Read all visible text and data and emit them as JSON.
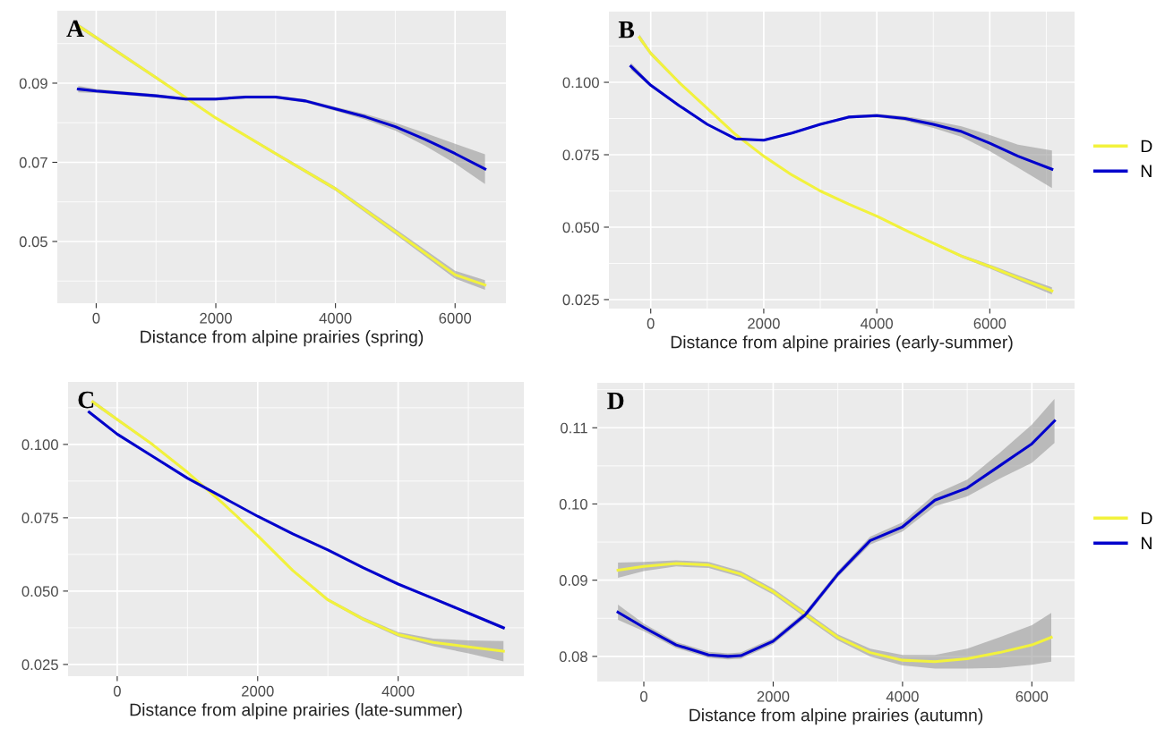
{
  "chart_data": [
    {
      "type": "line",
      "xlabel": "Distance from alpine prairies (spring)",
      "annotations": [
        "A"
      ],
      "xlim": [
        -650,
        6850
      ],
      "ylim": [
        0.0344,
        0.1083
      ],
      "xticks": [
        0,
        2000,
        4000,
        6000
      ],
      "yticks": [
        0.05,
        0.07,
        0.09
      ],
      "grid": true,
      "legend": false,
      "series": [
        {
          "color": "#f2f23c",
          "x": [
            -300,
            0,
            1000,
            2000,
            3000,
            4000,
            5000,
            6000,
            6500
          ],
          "values": [
            0.1045,
            0.1015,
            0.0914,
            0.0812,
            0.0722,
            0.0633,
            0.0525,
            0.0416,
            0.039
          ],
          "lower": [
            0.104,
            0.101,
            0.091,
            0.081,
            0.0718,
            0.0628,
            0.0518,
            0.0406,
            0.0378
          ],
          "upper": [
            0.105,
            0.102,
            0.0918,
            0.0815,
            0.0726,
            0.0638,
            0.0532,
            0.0426,
            0.0402
          ]
        },
        {
          "color": "#0000cc",
          "x": [
            -300,
            0,
            1000,
            1500,
            2000,
            2500,
            3000,
            3500,
            4000,
            4500,
            5000,
            5500,
            6000,
            6500
          ],
          "values": [
            0.0885,
            0.088,
            0.0868,
            0.086,
            0.086,
            0.0865,
            0.0865,
            0.0855,
            0.0835,
            0.0815,
            0.079,
            0.0758,
            0.0722,
            0.0683
          ],
          "lower": [
            0.0877,
            0.0875,
            0.0864,
            0.0856,
            0.0856,
            0.0861,
            0.0861,
            0.0851,
            0.083,
            0.0808,
            0.078,
            0.0742,
            0.0697,
            0.0645
          ],
          "upper": [
            0.0893,
            0.0885,
            0.0872,
            0.0864,
            0.0864,
            0.0869,
            0.0869,
            0.0859,
            0.084,
            0.0822,
            0.08,
            0.0774,
            0.0747,
            0.072
          ]
        }
      ]
    },
    {
      "type": "line",
      "xlabel": "Distance from alpine prairies (early-summer)",
      "annotations": [
        "B"
      ],
      "xlim": [
        -740,
        7500
      ],
      "ylim": [
        0.0219,
        0.1244
      ],
      "xticks": [
        0,
        2000,
        4000,
        6000
      ],
      "yticks": [
        {
          "value": 0.025,
          "label": "0.025"
        },
        {
          "value": 0.05,
          "label": "0.050"
        },
        {
          "value": 0.075,
          "label": "0.075"
        },
        {
          "value": 0.1,
          "label": "0.100"
        }
      ],
      "grid": true,
      "legend": "right",
      "series": [
        {
          "name": "D",
          "color": "#f2f23c",
          "x": [
            -200,
            0,
            500,
            1000,
            1500,
            2000,
            2500,
            3000,
            3500,
            4000,
            4500,
            5000,
            5500,
            6000,
            6500,
            7100
          ],
          "values": [
            0.1155,
            0.11,
            0.1,
            0.091,
            0.082,
            0.0745,
            0.068,
            0.0625,
            0.058,
            0.0538,
            0.049,
            0.0445,
            0.04,
            0.0364,
            0.0325,
            0.028
          ],
          "lower": [
            0.1145,
            0.1093,
            0.0995,
            0.0906,
            0.0817,
            0.0742,
            0.0677,
            0.0622,
            0.0577,
            0.0535,
            0.0487,
            0.0441,
            0.0395,
            0.0357,
            0.0316,
            0.0268
          ],
          "upper": [
            0.1165,
            0.1107,
            0.1005,
            0.0914,
            0.0823,
            0.0748,
            0.0683,
            0.0628,
            0.0583,
            0.0541,
            0.0493,
            0.0449,
            0.0405,
            0.0371,
            0.0334,
            0.0292
          ]
        },
        {
          "name": "N",
          "color": "#0000cc",
          "x": [
            -350,
            0,
            500,
            1000,
            1500,
            2000,
            2500,
            3000,
            3500,
            4000,
            4500,
            5000,
            5500,
            6000,
            6500,
            7100
          ],
          "values": [
            0.1055,
            0.099,
            0.092,
            0.0855,
            0.0805,
            0.08,
            0.0825,
            0.0855,
            0.088,
            0.0885,
            0.0875,
            0.0855,
            0.083,
            0.079,
            0.0745,
            0.07
          ],
          "lower": [
            0.1043,
            0.0984,
            0.0915,
            0.0851,
            0.0801,
            0.0796,
            0.0821,
            0.0851,
            0.0875,
            0.0879,
            0.0867,
            0.0843,
            0.0812,
            0.0762,
            0.0705,
            0.0635
          ],
          "upper": [
            0.1067,
            0.0996,
            0.0925,
            0.0859,
            0.0809,
            0.0804,
            0.0829,
            0.0859,
            0.0885,
            0.0891,
            0.0883,
            0.0867,
            0.0848,
            0.0818,
            0.0785,
            0.0765
          ]
        }
      ]
    },
    {
      "type": "line",
      "xlabel": "Distance from alpine prairies (late-summer)",
      "annotations": [
        "C"
      ],
      "xlim": [
        -700,
        5790
      ],
      "ylim": [
        0.021,
        0.1213
      ],
      "xticks": [
        0,
        2000,
        4000
      ],
      "yticks": [
        {
          "value": 0.025,
          "label": "0.025"
        },
        {
          "value": 0.05,
          "label": "0.050"
        },
        {
          "value": 0.075,
          "label": "0.075"
        },
        {
          "value": 0.1,
          "label": "0.100"
        }
      ],
      "grid": true,
      "legend": false,
      "series": [
        {
          "color": "#f2f23c",
          "x": [
            -350,
            0,
            500,
            1000,
            1500,
            2000,
            2500,
            3000,
            3500,
            4000,
            4500,
            5000,
            5500
          ],
          "values": [
            0.1145,
            0.1085,
            0.1,
            0.0905,
            0.08,
            0.0689,
            0.057,
            0.047,
            0.0405,
            0.0352,
            0.0325,
            0.031,
            0.0295
          ],
          "lower": [
            0.1138,
            0.108,
            0.0996,
            0.0901,
            0.0796,
            0.0685,
            0.0566,
            0.0465,
            0.0399,
            0.0344,
            0.0312,
            0.0288,
            0.026
          ],
          "upper": [
            0.1152,
            0.109,
            0.1004,
            0.0909,
            0.0804,
            0.0693,
            0.0574,
            0.0475,
            0.0411,
            0.036,
            0.0338,
            0.0332,
            0.033
          ]
        },
        {
          "color": "#0000cc",
          "x": [
            -400,
            0,
            500,
            1000,
            1500,
            2000,
            2500,
            3000,
            3500,
            4000,
            4500,
            5000,
            5500
          ],
          "values": [
            0.111,
            0.1035,
            0.096,
            0.0885,
            0.082,
            0.0755,
            0.0695,
            0.064,
            0.058,
            0.0524,
            0.0475,
            0.0425,
            0.0375
          ],
          "lower": [
            0.1104,
            0.1031,
            0.0957,
            0.0882,
            0.0817,
            0.0752,
            0.0692,
            0.0637,
            0.0577,
            0.0521,
            0.0471,
            0.042,
            0.0369
          ],
          "upper": [
            0.1116,
            0.1039,
            0.0963,
            0.0888,
            0.0823,
            0.0758,
            0.0698,
            0.0643,
            0.0583,
            0.0527,
            0.0479,
            0.043,
            0.0381
          ]
        }
      ]
    },
    {
      "type": "line",
      "xlabel": "Distance from alpine prairies (autumn)",
      "annotations": [
        "D"
      ],
      "xlim": [
        -720,
        6660
      ],
      "ylim": [
        0.0767,
        0.1159
      ],
      "xticks": [
        0,
        2000,
        4000,
        6000
      ],
      "yticks": [
        0.08,
        0.09,
        {
          "value": 0.1,
          "label": "0.10"
        },
        0.11
      ],
      "grid": true,
      "legend": "right",
      "series": [
        {
          "name": "D",
          "color": "#f2f23c",
          "x": [
            -400,
            0,
            500,
            1000,
            1500,
            2000,
            2500,
            3000,
            3500,
            4000,
            4500,
            5000,
            5500,
            6000,
            6300
          ],
          "values": [
            0.0913,
            0.0918,
            0.0922,
            0.092,
            0.0908,
            0.0885,
            0.0855,
            0.0825,
            0.0805,
            0.0795,
            0.0793,
            0.0797,
            0.0805,
            0.0815,
            0.0825
          ],
          "lower": [
            0.0903,
            0.0912,
            0.0918,
            0.0916,
            0.0904,
            0.0881,
            0.0851,
            0.0821,
            0.08,
            0.0788,
            0.0784,
            0.0784,
            0.0785,
            0.0789,
            0.0793
          ],
          "upper": [
            0.0923,
            0.0924,
            0.0926,
            0.0924,
            0.0912,
            0.0889,
            0.0859,
            0.0829,
            0.081,
            0.0802,
            0.0802,
            0.081,
            0.0825,
            0.0841,
            0.0857
          ]
        },
        {
          "name": "N",
          "color": "#0000cc",
          "x": [
            -400,
            0,
            500,
            1000,
            1300,
            1500,
            2000,
            2500,
            3000,
            3500,
            4000,
            4500,
            5000,
            5500,
            6000,
            6350
          ],
          "values": [
            0.0858,
            0.0838,
            0.0815,
            0.0802,
            0.08,
            0.0801,
            0.082,
            0.0855,
            0.0908,
            0.0952,
            0.097,
            0.1005,
            0.1021,
            0.105,
            0.1079,
            0.1109
          ],
          "lower": [
            0.0848,
            0.0833,
            0.0811,
            0.0798,
            0.0796,
            0.0797,
            0.0816,
            0.0851,
            0.0904,
            0.0947,
            0.0964,
            0.0997,
            0.101,
            0.1033,
            0.1054,
            0.108
          ],
          "upper": [
            0.0868,
            0.0843,
            0.0819,
            0.0806,
            0.0804,
            0.0805,
            0.0824,
            0.0859,
            0.0912,
            0.0957,
            0.0976,
            0.1013,
            0.1032,
            0.1067,
            0.1104,
            0.1138
          ]
        }
      ]
    }
  ]
}
